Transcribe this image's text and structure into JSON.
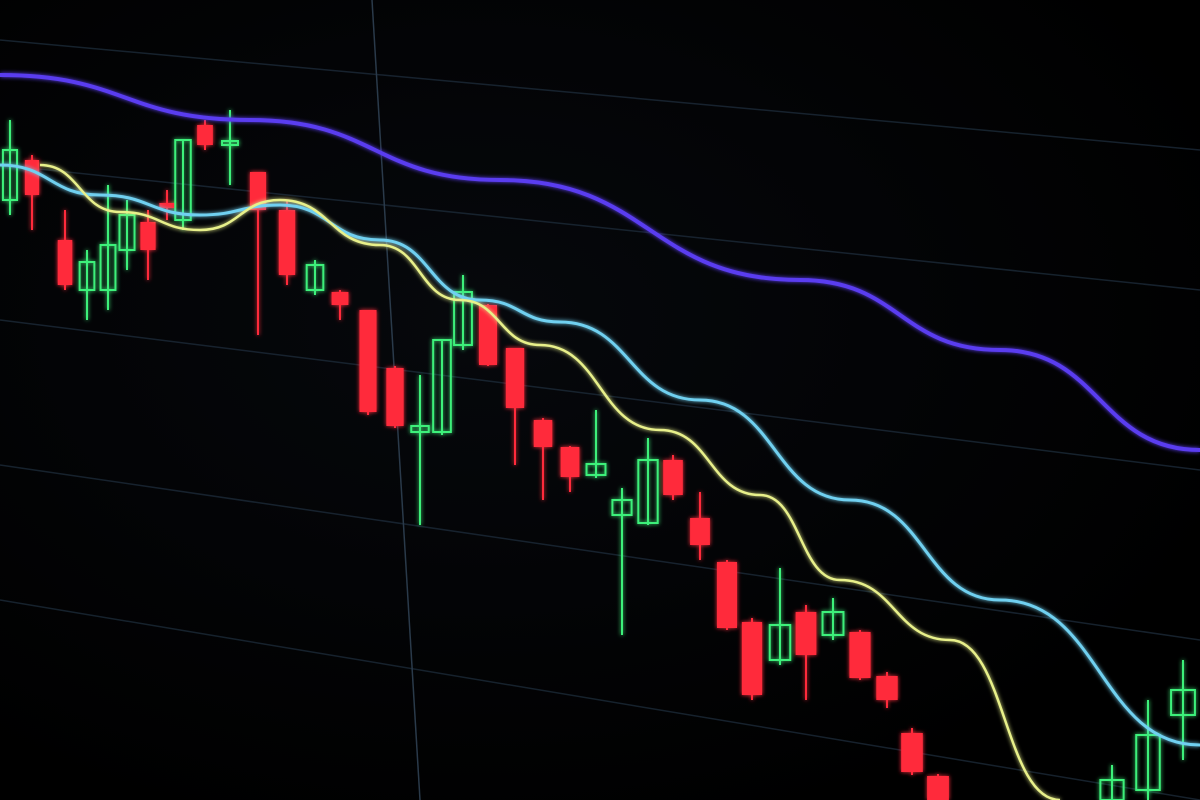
{
  "colors": {
    "background": "#000000",
    "bearish_candle": "#ff2a3a",
    "bullish_candle": "#3cf07a",
    "long_average_line": "#5a3cf0",
    "mid_average_line": "#6fd0f0",
    "short_average_line": "#e8f08a",
    "grid": "#1c2a38"
  }
}
